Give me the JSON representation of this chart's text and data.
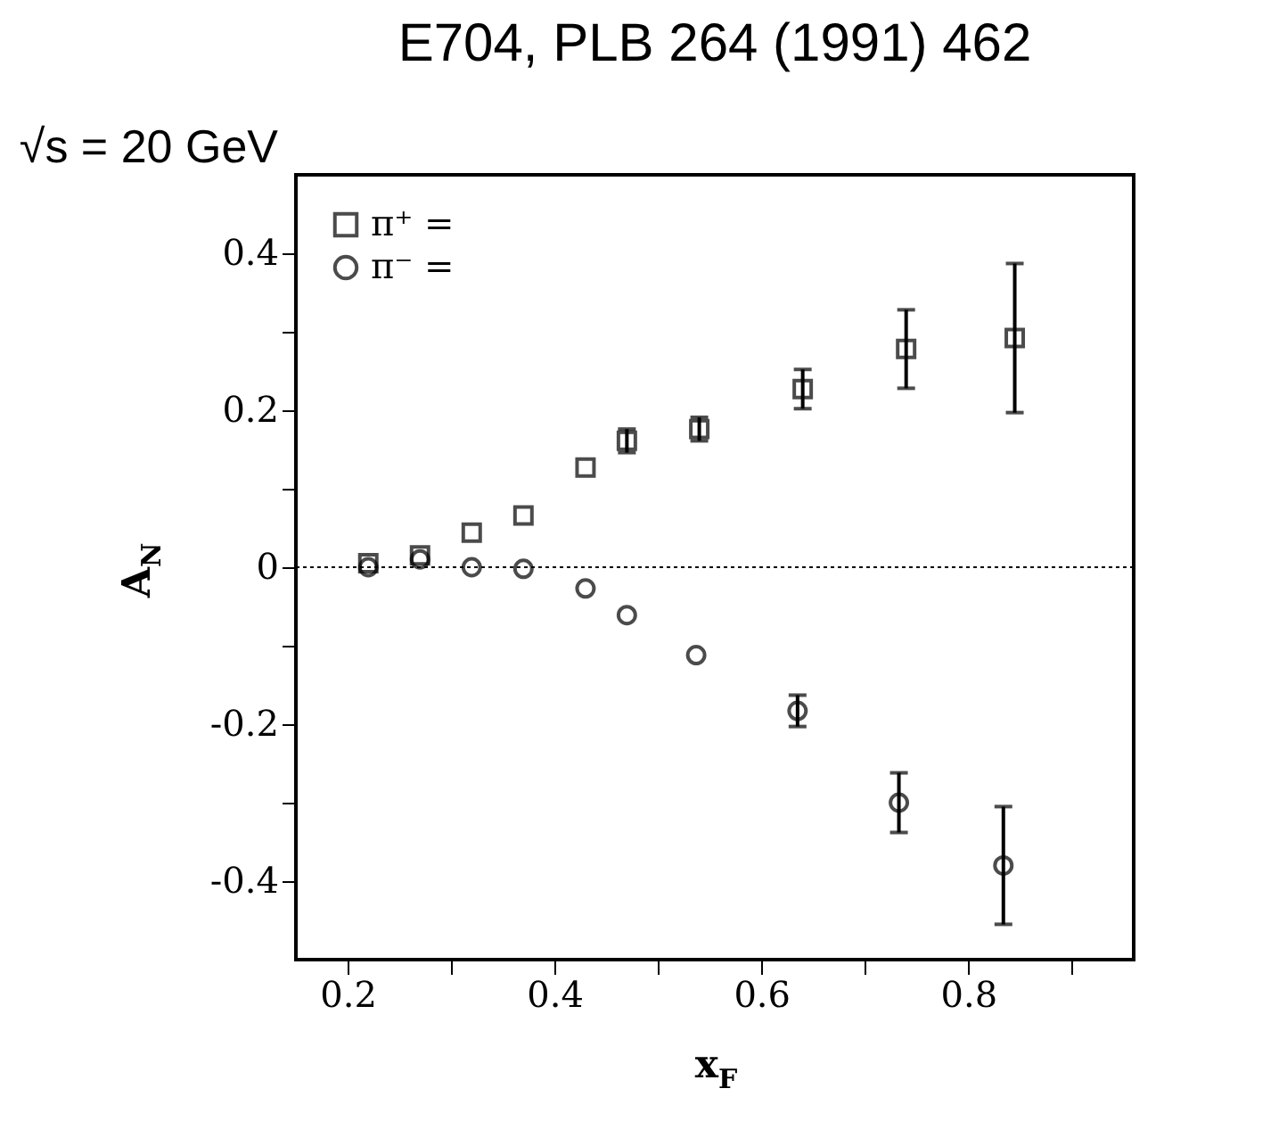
{
  "chart_data": {
    "type": "scatter",
    "title": "E704, PLB 264 (1991) 462",
    "xlabel": "x$_{F}$",
    "ylabel": "A$_{N}$",
    "annotations": [
      "√s = 20 GeV"
    ],
    "xlim": [
      0.15,
      0.96
    ],
    "ylim": [
      -0.5,
      0.5
    ],
    "xticks": [
      0.2,
      {
        "value": 0.3,
        "label": null
      },
      0.4,
      {
        "value": 0.5,
        "label": null
      },
      0.6,
      {
        "value": 0.7,
        "label": null
      },
      0.8,
      {
        "value": 0.9,
        "label": null
      }
    ],
    "yticks": [
      -0.4,
      {
        "value": -0.3,
        "label": null
      },
      -0.2,
      {
        "value": -0.1,
        "label": null
      },
      0,
      {
        "value": 0.1,
        "label": null
      },
      0.2,
      {
        "value": 0.3,
        "label": null
      },
      0.4
    ],
    "ref_lines": [
      {
        "axis": "y",
        "value": 0,
        "line_style": "dotted"
      }
    ],
    "legend": "top left",
    "grid": false,
    "series": [
      {
        "name": "π⁺ =",
        "color": "#000000",
        "marker": "square",
        "x": [
          0.22,
          0.27,
          0.32,
          0.37,
          0.43,
          0.47,
          0.54,
          0.64,
          0.74,
          0.845
        ],
        "values": [
          0.005,
          0.015,
          0.044,
          0.066,
          0.127,
          0.161,
          0.176,
          0.227,
          0.278,
          0.292
        ],
        "errors": [
          null,
          null,
          null,
          null,
          null,
          0.015,
          0.015,
          0.025,
          0.05,
          0.095
        ]
      },
      {
        "name": "π⁻ =",
        "color": "#000000",
        "marker": "circle",
        "x": [
          0.22,
          0.27,
          0.32,
          0.37,
          0.43,
          0.47,
          0.537,
          0.635,
          0.733,
          0.834
        ],
        "values": [
          0.0,
          0.01,
          0.0,
          -0.002,
          -0.027,
          -0.061,
          -0.112,
          -0.183,
          -0.3,
          -0.38
        ],
        "errors": [
          null,
          null,
          null,
          null,
          null,
          null,
          null,
          0.02,
          0.038,
          0.075
        ]
      }
    ]
  }
}
